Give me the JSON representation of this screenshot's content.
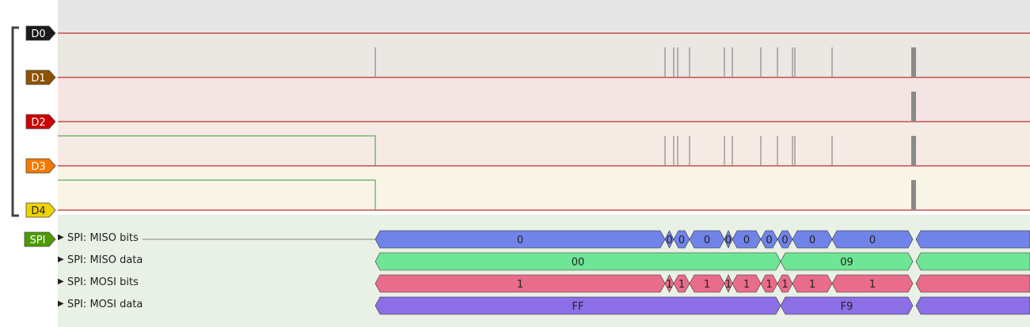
{
  "channels": [
    {
      "label": "D0",
      "color": "#1a1a1a",
      "text_color": "#ffffff"
    },
    {
      "label": "D1",
      "color": "#8f5202",
      "text_color": "#ffffff"
    },
    {
      "label": "D2",
      "color": "#cc0000",
      "text_color": "#ffffff"
    },
    {
      "label": "D3",
      "color": "#f57900",
      "text_color": "#ffffff"
    },
    {
      "label": "D4",
      "color": "#edd400",
      "text_color": "#222222"
    }
  ],
  "decoder": {
    "label": "SPI",
    "color": "#4e9a06"
  },
  "rows": [
    {
      "label": "SPI: MISO bits",
      "color": "#7083e8",
      "segments": [
        {
          "text": "0"
        },
        {
          "text": "0"
        },
        {
          "text": "0"
        },
        {
          "text": "0"
        },
        {
          "text": "0"
        },
        {
          "text": "0"
        },
        {
          "text": "0"
        },
        {
          "text": "0"
        },
        {
          "text": "0"
        },
        {
          "text": "0"
        }
      ]
    },
    {
      "label": "SPI: MISO data",
      "color": "#6fe596",
      "segments": [
        {
          "text": "00"
        },
        {
          "text": "09"
        }
      ]
    },
    {
      "label": "SPI: MOSI bits",
      "color": "#e96c8a",
      "segments": [
        {
          "text": "1"
        },
        {
          "text": "1"
        },
        {
          "text": "1"
        },
        {
          "text": "1"
        },
        {
          "text": "1"
        },
        {
          "text": "1"
        },
        {
          "text": "1"
        },
        {
          "text": "1"
        },
        {
          "text": "1"
        },
        {
          "text": "1"
        }
      ]
    },
    {
      "label": "SPI: MOSI data",
      "color": "#8c6ee6",
      "segments": [
        {
          "text": "FF"
        },
        {
          "text": "F9"
        }
      ]
    }
  ]
}
